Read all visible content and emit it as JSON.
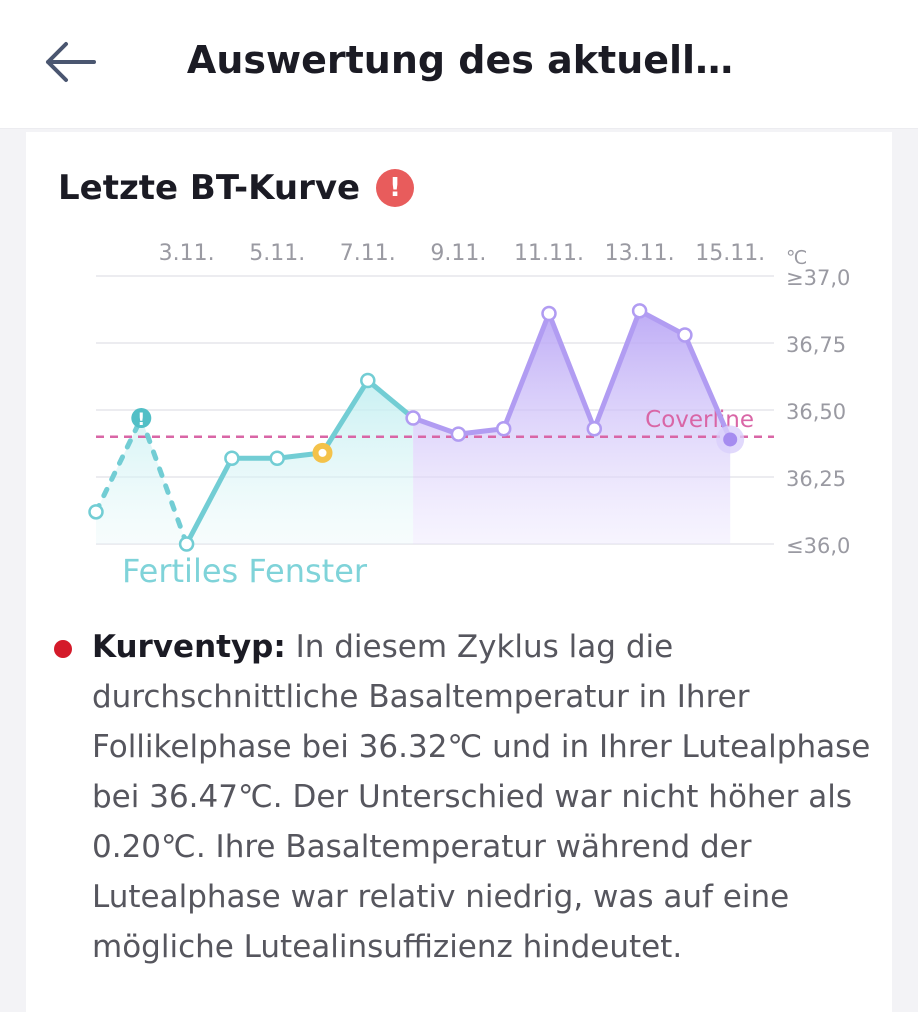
{
  "header": {
    "title": "Auswertung des aktuell…",
    "back_icon": "arrow-left-icon"
  },
  "section": {
    "title": "Letzte BT-Kurve",
    "warning_icon": "exclamation-circle-icon",
    "warning_glyph": "!"
  },
  "chart_data": {
    "type": "line",
    "x_tick_labels": [
      "3.11.",
      "5.11.",
      "7.11.",
      "9.11.",
      "11.11.",
      "13.11.",
      "15.11."
    ],
    "y_tick_labels": [
      "≥37,0",
      "36,75",
      "36,50",
      "36,25",
      "≤36,0"
    ],
    "y_ticks": [
      37.0,
      36.75,
      36.5,
      36.25,
      36.0
    ],
    "unit": "℃",
    "ylim": [
      36.0,
      37.0
    ],
    "x_days": [
      1,
      2,
      3,
      4,
      5,
      6,
      7,
      8,
      9,
      10,
      11,
      12,
      13,
      14,
      15,
      16
    ],
    "series": [
      {
        "values": [
          36.12,
          36.47,
          36.0,
          36.32,
          36.32,
          36.34,
          36.61,
          36.47,
          36.41,
          36.43,
          36.86,
          36.43,
          36.87,
          36.78,
          36.39
        ],
        "phase_colors": [
          "#7ccdd3",
          "#b3a0f2"
        ]
      }
    ],
    "coverline": {
      "label": "Coverline",
      "value": 36.4
    },
    "fertile_window_label": "Fertiles Fenster",
    "marker_glyph": "!",
    "colors": {
      "follicular": "#72cdd4",
      "luteal": "#b19cf2",
      "coverline": "#d966a6",
      "grid": "#e6e6ec",
      "axis_text": "#9a9aa2"
    }
  },
  "description": {
    "label": "Kurventyp:",
    "text": " In diesem Zyklus lag die durchschnittliche Basaltemperatur in Ihrer Follikelphase bei 36.32℃ und in Ihrer Lutealphase bei 36.47℃. Der Unterschied war nicht höher als 0.20℃. Ihre Basaltemperatur während der Lutealphase war relativ niedrig, was auf eine mögliche Lutealinsuffizienz hindeutet.",
    "bullet_color": "#d41a2a"
  }
}
